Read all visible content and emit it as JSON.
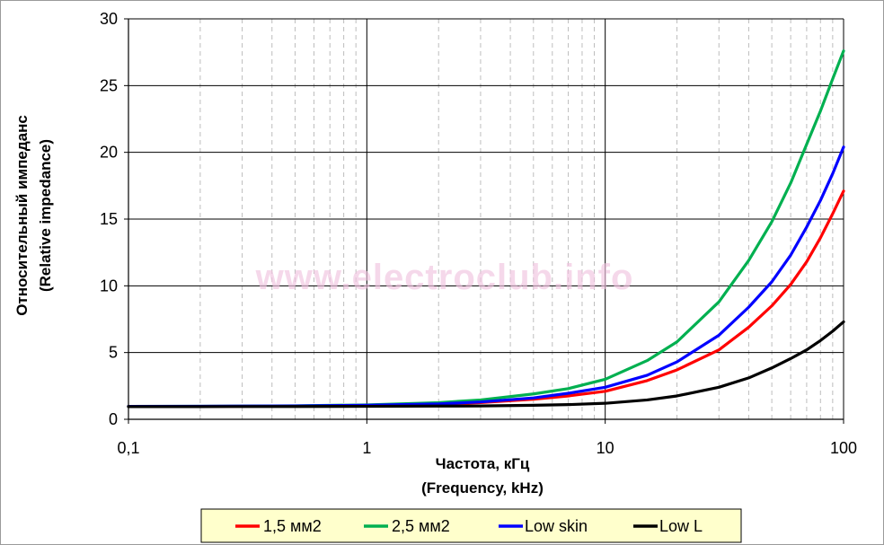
{
  "chart_data": {
    "type": "line",
    "title": "",
    "xlabel_lines": [
      "Частота, кГц",
      "(Frequency, kHz)"
    ],
    "ylabel_lines": [
      "Относительный импеданс",
      "(Relative impedance)"
    ],
    "x_scale": "log",
    "xlim": [
      0.1,
      100
    ],
    "ylim": [
      0,
      30
    ],
    "x_ticks": [
      0.1,
      1,
      10,
      100
    ],
    "x_tick_labels": [
      "0,1",
      "1",
      "10",
      "100"
    ],
    "y_ticks": [
      0,
      5,
      10,
      15,
      20,
      25,
      30
    ],
    "y_tick_labels": [
      "0",
      "5",
      "10",
      "15",
      "20",
      "25",
      "30"
    ],
    "grid": {
      "major": true,
      "minor_x_dashed": true
    },
    "legend_position": "bottom",
    "watermark": "www.electroclub.info",
    "series": [
      {
        "name": "1,5 мм2",
        "color": "#ff0000",
        "x": [
          0.1,
          0.2,
          0.5,
          1,
          2,
          3,
          5,
          7,
          10,
          15,
          20,
          30,
          40,
          50,
          60,
          70,
          80,
          90,
          100
        ],
        "y": [
          0.97,
          0.97,
          0.99,
          1.03,
          1.13,
          1.25,
          1.5,
          1.75,
          2.1,
          2.9,
          3.7,
          5.2,
          6.9,
          8.5,
          10.1,
          11.8,
          13.6,
          15.4,
          17.1
        ]
      },
      {
        "name": "2,5 мм2",
        "color": "#00b050",
        "x": [
          0.1,
          0.2,
          0.5,
          1,
          2,
          3,
          5,
          7,
          10,
          15,
          20,
          30,
          40,
          50,
          60,
          70,
          80,
          90,
          100
        ],
        "y": [
          0.97,
          0.98,
          1.01,
          1.08,
          1.25,
          1.45,
          1.9,
          2.3,
          3.0,
          4.4,
          5.8,
          8.8,
          11.9,
          14.8,
          17.7,
          20.6,
          23.1,
          25.5,
          27.6
        ]
      },
      {
        "name": "Low skin",
        "color": "#0000ff",
        "x": [
          0.1,
          0.2,
          0.5,
          1,
          2,
          3,
          5,
          7,
          10,
          15,
          20,
          30,
          40,
          50,
          60,
          70,
          80,
          90,
          100
        ],
        "y": [
          0.97,
          0.98,
          1.0,
          1.05,
          1.15,
          1.3,
          1.6,
          1.95,
          2.4,
          3.3,
          4.3,
          6.3,
          8.4,
          10.3,
          12.3,
          14.4,
          16.4,
          18.4,
          20.4
        ]
      },
      {
        "name": "Low L",
        "color": "#000000",
        "x": [
          0.1,
          0.2,
          0.5,
          1,
          2,
          3,
          5,
          7,
          10,
          15,
          20,
          30,
          40,
          50,
          60,
          70,
          80,
          90,
          100
        ],
        "y": [
          0.95,
          0.95,
          0.96,
          0.97,
          0.99,
          1.0,
          1.05,
          1.1,
          1.2,
          1.45,
          1.75,
          2.4,
          3.1,
          3.85,
          4.55,
          5.2,
          5.9,
          6.6,
          7.3
        ]
      }
    ]
  }
}
